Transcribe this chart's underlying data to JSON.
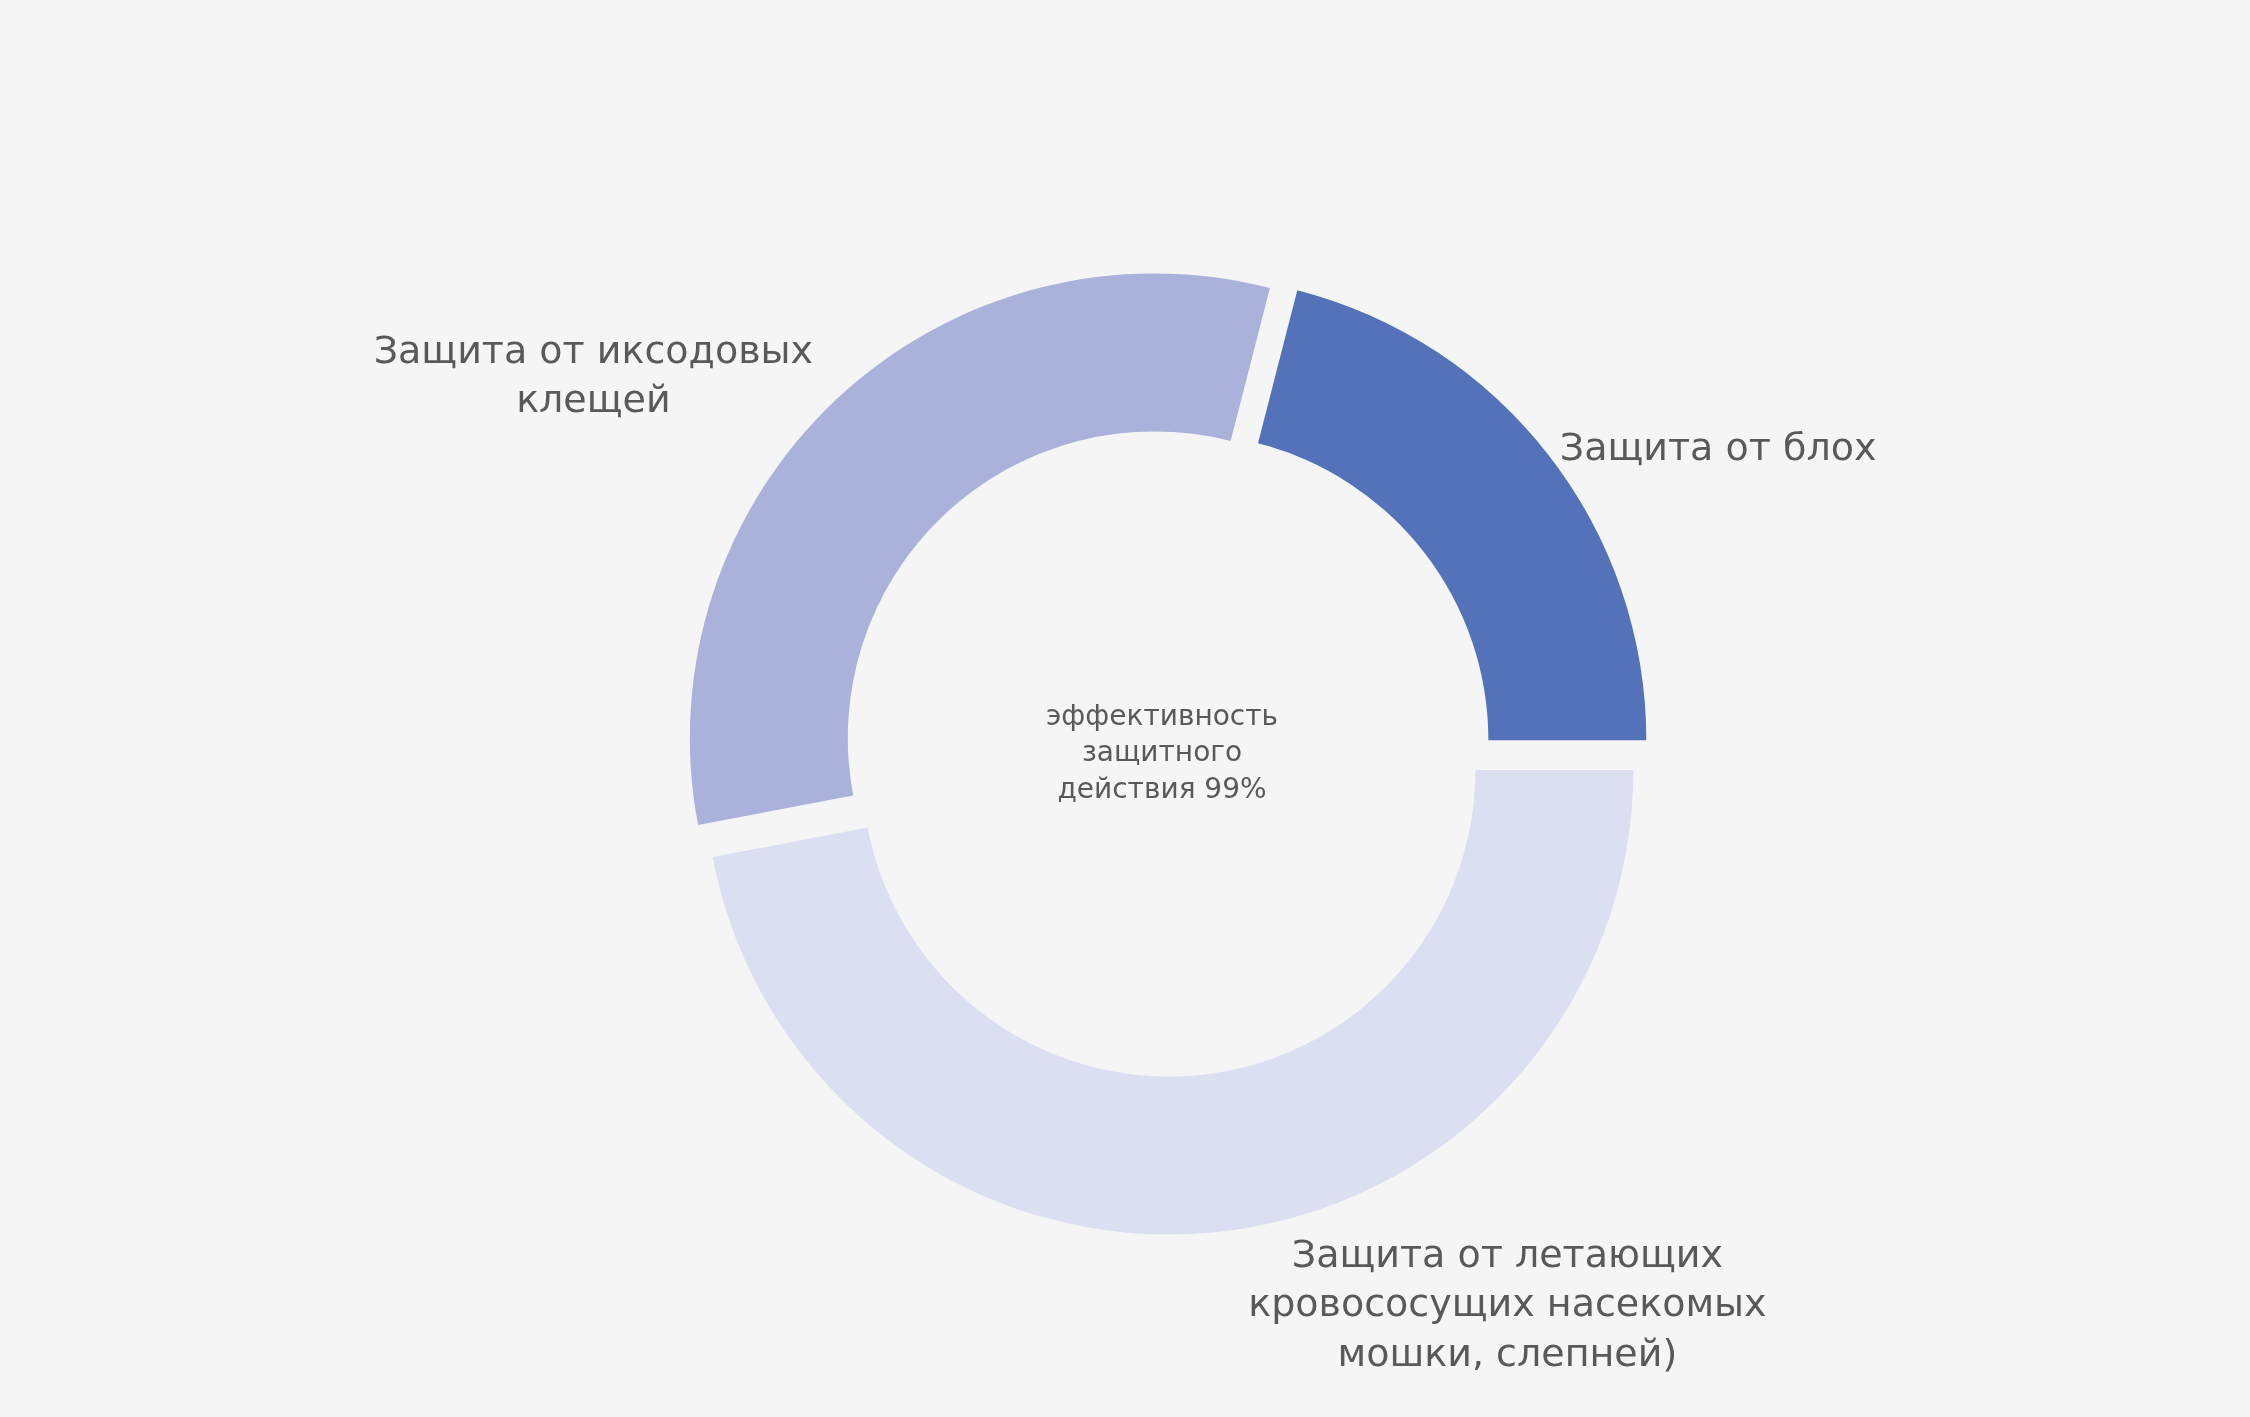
{
  "chart_data": {
    "type": "donut",
    "categories": [
      "Защита от блох",
      "Защита от летающих кровососущих насекомых мошки, слепней)",
      "Защита от иксодовых клещей"
    ],
    "values": [
      21,
      47,
      32
    ],
    "colors": [
      "#5472b9",
      "#dcdff2",
      "#aab1db"
    ],
    "annotations": [
      "эффективность защитного действия 99%"
    ]
  }
}
